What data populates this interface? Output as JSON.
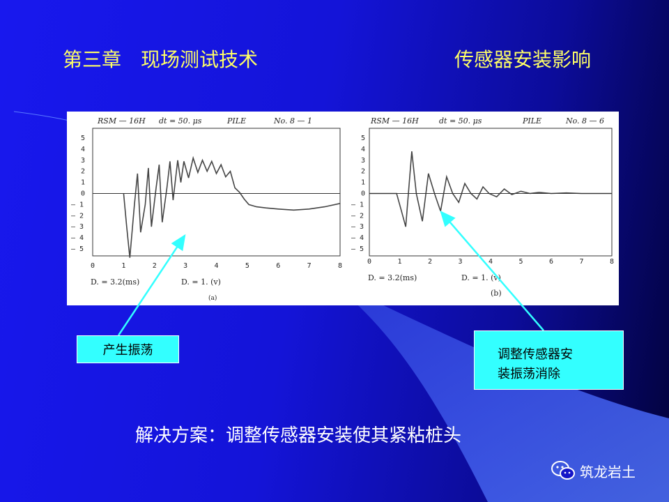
{
  "header": {
    "chapter_title": "第三章　现场测试技术",
    "topic_title": "传感器安装影响"
  },
  "figure": {
    "left_panel": {
      "header": [
        "RSM — 16H",
        "dt = 50. μs",
        "PILE",
        "No. 8 — 1"
      ],
      "footer_left": "D. = 3.2(ms)",
      "footer_right": "D. = 1. (v)",
      "caption": "(a)"
    },
    "right_panel": {
      "header": [
        "RSM — 16H",
        "dt = 50. μs",
        "PILE",
        "No. 8 — 6"
      ],
      "footer_left": "D. = 3.2(ms)",
      "footer_right": "D. = 1. (v)",
      "caption": "(b)"
    },
    "y_ticks": [
      "5",
      "4",
      "3",
      "2",
      "1",
      "0",
      "— 1",
      "— 2",
      "— 3",
      "— 4",
      "— 5"
    ],
    "x_ticks": [
      "0",
      "1",
      "2",
      "3",
      "4",
      "5",
      "6",
      "7",
      "8"
    ]
  },
  "chart_data": [
    {
      "type": "line",
      "title": "RSM — 16H  dt = 50. μs  PILE  No. 8 — 1",
      "xlim": [
        0,
        8
      ],
      "ylim": [
        -5,
        5
      ],
      "series": [
        {
          "x": [
            1.0,
            1.1,
            1.2,
            1.35,
            1.45,
            1.55,
            1.7,
            1.8,
            1.9,
            2.05,
            2.15,
            2.25,
            2.4,
            2.5,
            2.6,
            2.75,
            2.85,
            2.95,
            3.1,
            3.25,
            3.4,
            3.55,
            3.7,
            3.85,
            4.0,
            4.15,
            4.3,
            4.45,
            4.6,
            4.75,
            4.9,
            5.05,
            5.3,
            5.6,
            6.0,
            6.5,
            7.0,
            7.5,
            8.0
          ],
          "y": [
            0,
            -3,
            -5.8,
            -1,
            1.8,
            -3.5,
            -1,
            2.3,
            -3,
            0.5,
            2.6,
            -2.6,
            0.5,
            2.9,
            -0.6,
            3.0,
            1.0,
            2.9,
            1.4,
            3.2,
            1.9,
            3.0,
            2.0,
            2.9,
            1.8,
            2.6,
            1.5,
            2.0,
            0.5,
            0.1,
            -0.5,
            -1.0,
            -1.2,
            -1.3,
            -1.4,
            -1.5,
            -1.4,
            -1.2,
            -0.9
          ]
        }
      ]
    },
    {
      "type": "line",
      "title": "RSM — 16H  dt = 50. μs  PILE  No. 8 — 6",
      "xlim": [
        0,
        8
      ],
      "ylim": [
        -5,
        5
      ],
      "series": [
        {
          "x": [
            0,
            0.9,
            1.05,
            1.2,
            1.4,
            1.55,
            1.75,
            1.95,
            2.15,
            2.35,
            2.55,
            2.75,
            2.95,
            3.15,
            3.35,
            3.55,
            3.75,
            3.95,
            4.2,
            4.45,
            4.7,
            5.0,
            5.3,
            5.6,
            6.0,
            6.5,
            7.0,
            8.0
          ],
          "y": [
            0,
            0,
            -1.5,
            -3,
            3.8,
            0,
            -2.5,
            1.8,
            0,
            -1.6,
            1.5,
            0,
            -0.8,
            0.9,
            0,
            -0.5,
            0.6,
            0,
            -0.3,
            0.4,
            -0.1,
            0.2,
            0,
            0.1,
            0,
            0.05,
            0,
            0
          ]
        }
      ]
    }
  ],
  "callouts": {
    "left": "产生振荡",
    "right_line1": "调整传感器安",
    "right_line2": "装振荡消除"
  },
  "solution": "解决方案：调整传感器安装使其紧粘桩头",
  "watermark": {
    "icon": "wechat-icon",
    "text": "筑龙岩土"
  },
  "colors": {
    "title": "#ffff66",
    "callout_bg": "#33ffff",
    "arrow": "#33ffff",
    "background": "#1616e0"
  }
}
